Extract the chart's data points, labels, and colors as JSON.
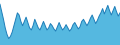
{
  "values": [
    5200,
    4500,
    3800,
    3000,
    2400,
    2000,
    2200,
    2600,
    3200,
    3800,
    4400,
    4200,
    3600,
    3200,
    3600,
    4000,
    3500,
    3000,
    2800,
    3200,
    3800,
    3400,
    3000,
    2800,
    3200,
    3600,
    3200,
    2800,
    3000,
    3400,
    3200,
    2900,
    2700,
    3100,
    3500,
    3100,
    2800,
    3000,
    3300,
    3000,
    2700,
    2900,
    3300,
    3500,
    3200,
    2900,
    3100,
    3600,
    3800,
    3500,
    3200,
    3500,
    3900,
    4200,
    3800,
    3400,
    3700,
    4100,
    4400,
    4800,
    4300,
    4700,
    5100,
    4600,
    4200,
    4600,
    5000,
    4500,
    4100,
    4400
  ],
  "fill_color": "#55b8e0",
  "line_color": "#1e7db8",
  "background_color": "#ffffff",
  "ylim_min": 1400,
  "ylim_max": 5600
}
